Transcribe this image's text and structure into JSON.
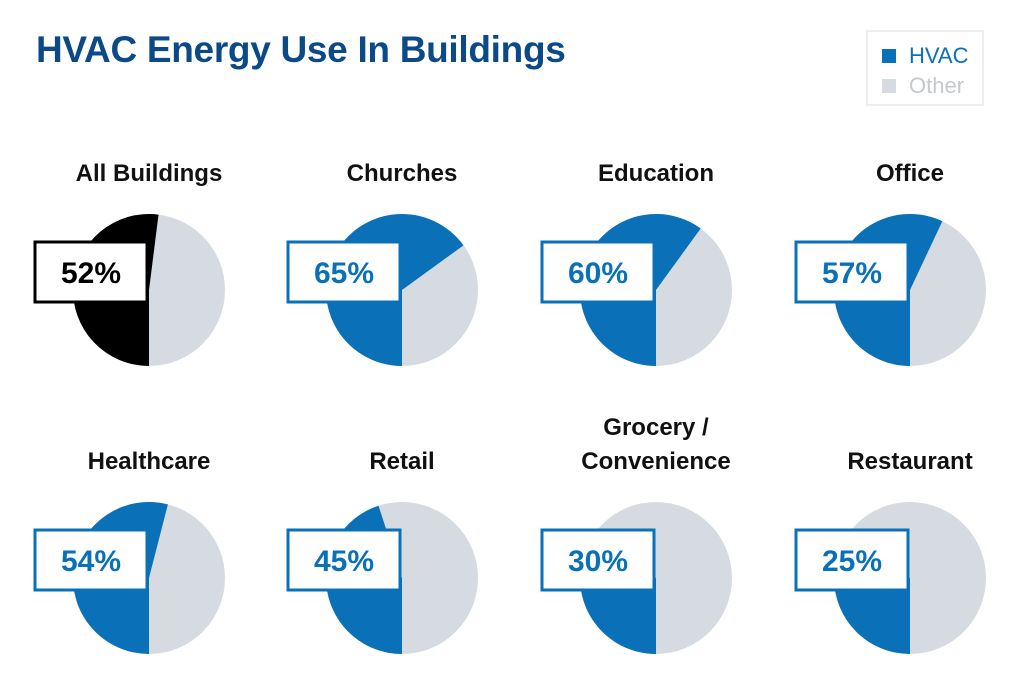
{
  "header": {
    "title": "HVAC Energy Use In Buildings"
  },
  "legend": {
    "items": [
      {
        "label": "HVAC",
        "color": "#0a71b8"
      },
      {
        "label": "Other",
        "color": "#d5dbe1"
      }
    ]
  },
  "colors": {
    "title": "#0b4a86",
    "hvac": "#0a71b8",
    "other": "#d5dbe1",
    "highlight": "#000000",
    "legend_text_hvac": "#0a71b8",
    "legend_text_other": "#c4c9cf"
  },
  "chart_data": [
    {
      "type": "pie",
      "title": "All Buildings",
      "categories": [
        "HVAC",
        "Other"
      ],
      "values": [
        52,
        48
      ],
      "data_label": "52%",
      "highlight": true
    },
    {
      "type": "pie",
      "title": "Churches",
      "categories": [
        "HVAC",
        "Other"
      ],
      "values": [
        65,
        35
      ],
      "data_label": "65%"
    },
    {
      "type": "pie",
      "title": "Education",
      "categories": [
        "HVAC",
        "Other"
      ],
      "values": [
        60,
        40
      ],
      "data_label": "60%"
    },
    {
      "type": "pie",
      "title": "Office",
      "categories": [
        "HVAC",
        "Other"
      ],
      "values": [
        57,
        43
      ],
      "data_label": "57%"
    },
    {
      "type": "pie",
      "title": "Healthcare",
      "categories": [
        "HVAC",
        "Other"
      ],
      "values": [
        54,
        46
      ],
      "data_label": "54%"
    },
    {
      "type": "pie",
      "title": "Retail",
      "categories": [
        "HVAC",
        "Other"
      ],
      "values": [
        45,
        55
      ],
      "data_label": "45%"
    },
    {
      "type": "pie",
      "title": [
        "Grocery /",
        "Convenience"
      ],
      "categories": [
        "HVAC",
        "Other"
      ],
      "values": [
        30,
        70
      ],
      "data_label": "30%"
    },
    {
      "type": "pie",
      "title": "Restaurant",
      "categories": [
        "HVAC",
        "Other"
      ],
      "values": [
        25,
        75
      ],
      "data_label": "25%"
    }
  ]
}
